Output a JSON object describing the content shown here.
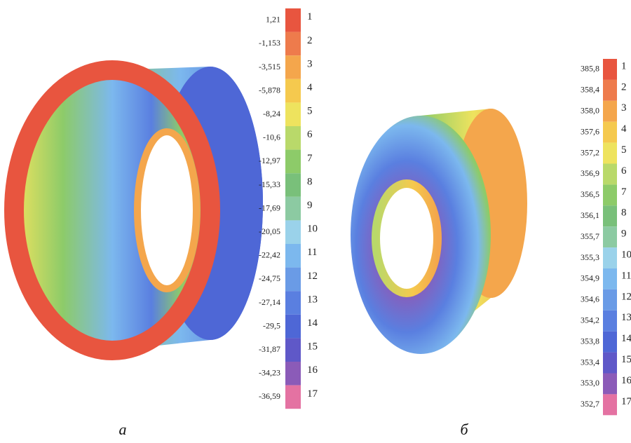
{
  "colors": [
    "#e8553f",
    "#ee7b4c",
    "#f4a64c",
    "#f5c94e",
    "#eee35e",
    "#b9d96a",
    "#8dcb69",
    "#79c07a",
    "#8ccaa2",
    "#9ad2ea",
    "#7cb8ee",
    "#6a9be6",
    "#5a7fe0",
    "#4e67d6",
    "#5f58c8",
    "#8b5bb8",
    "#e472a2"
  ],
  "panels": [
    {
      "caption": "а",
      "legend": {
        "values": [
          "1,21",
          "-1,153",
          "-3,515",
          "-5,878",
          "-8,24",
          "-10,6",
          "-12,97",
          "-15,33",
          "-17,69",
          "-20,05",
          "-22,42",
          "-24,75",
          "-27,14",
          "-29,5",
          "-31,87",
          "-34,23",
          "-36,59"
        ],
        "indices": [
          1,
          2,
          3,
          4,
          5,
          6,
          7,
          8,
          9,
          10,
          11,
          12,
          13,
          14,
          15,
          16,
          17
        ]
      }
    },
    {
      "caption": "б",
      "legend": {
        "values": [
          "385,8",
          "358,4",
          "358,0",
          "357,6",
          "357,2",
          "356,9",
          "356,5",
          "356,1",
          "355,7",
          "355,3",
          "354,9",
          "354,6",
          "354,2",
          "353,8",
          "353,4",
          "353,0",
          "352,7"
        ],
        "indices": [
          1,
          2,
          3,
          4,
          5,
          6,
          7,
          8,
          9,
          10,
          11,
          12,
          13,
          14,
          15,
          16,
          17
        ]
      }
    }
  ]
}
